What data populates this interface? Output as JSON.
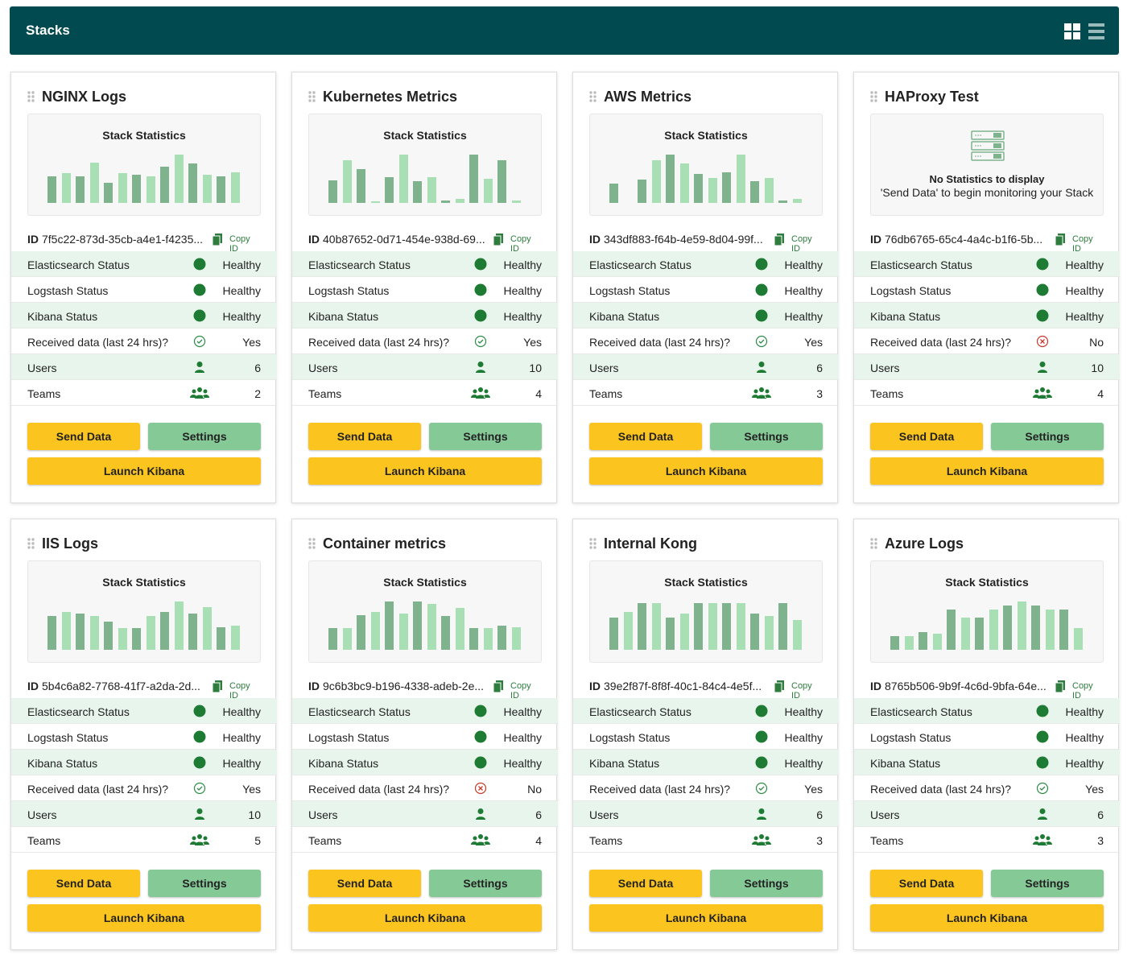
{
  "header": {
    "title": "Stacks"
  },
  "row_labels": [
    "Elasticsearch Status",
    "Logstash Status",
    "Kibana Status",
    "Received data (last 24 hrs)?",
    "Users",
    "Teams"
  ],
  "id_prefix": "ID",
  "copy_label": "Copy ID",
  "stats_title": "Stack Statistics",
  "buttons": {
    "send": "Send Data",
    "settings": "Settings",
    "launch": "Launch Kibana"
  },
  "stats_ylim": [
    0,
    100
  ],
  "bar_colors": [
    "#7fb38d",
    "#a8dfb5"
  ],
  "cards": [
    {
      "title": "NGINX Logs",
      "id": "7f5c22-873d-35cb-a4e1-f4235...",
      "statuses": [
        "Healthy",
        "Healthy",
        "Healthy"
      ],
      "received": "Yes",
      "received_ok": true,
      "users": 6,
      "teams": 2,
      "stats": [
        55,
        62,
        55,
        83,
        42,
        62,
        58,
        55,
        75,
        100,
        82,
        58,
        55,
        63
      ]
    },
    {
      "title": "Kubernetes Metrics",
      "id": "40b87652-0d71-454e-938d-69...",
      "statuses": [
        "Healthy",
        "Healthy",
        "Healthy"
      ],
      "received": "Yes",
      "received_ok": true,
      "users": 10,
      "teams": 4,
      "stats": [
        47,
        88,
        70,
        3,
        53,
        100,
        45,
        53,
        5,
        8,
        100,
        50,
        88,
        5
      ]
    },
    {
      "title": "AWS Metrics",
      "id": "343df883-f64b-4e59-8d04-99f...",
      "statuses": [
        "Healthy",
        "Healthy",
        "Healthy"
      ],
      "received": "Yes",
      "received_ok": true,
      "users": 6,
      "teams": 3,
      "stats": [
        40,
        0,
        48,
        88,
        100,
        82,
        60,
        52,
        63,
        100,
        45,
        52,
        5,
        8
      ]
    },
    {
      "title": "HAProxy Test",
      "id": "76db6765-65c4-4a4c-b1f6-5b...",
      "statuses": [
        "Healthy",
        "Healthy",
        "Healthy"
      ],
      "received": "No",
      "received_ok": false,
      "users": 10,
      "teams": 4,
      "no_stats": [
        "No Statistics to display",
        "'Send Data' to begin monitoring your Stack"
      ]
    },
    {
      "title": "IIS Logs",
      "id": "5b4c6a82-7768-41f7-a2da-2d...",
      "statuses": [
        "Healthy",
        "Healthy",
        "Healthy"
      ],
      "received": "Yes",
      "received_ok": true,
      "users": 10,
      "teams": 5,
      "stats": [
        70,
        78,
        75,
        70,
        58,
        45,
        45,
        70,
        78,
        100,
        75,
        88,
        47,
        50
      ]
    },
    {
      "title": "Container metrics",
      "id": "9c6b3bc9-b196-4338-adeb-2e...",
      "statuses": [
        "Healthy",
        "Healthy",
        "Healthy"
      ],
      "received": "No",
      "received_ok": false,
      "users": 6,
      "teams": 4,
      "stats": [
        45,
        45,
        72,
        78,
        100,
        75,
        100,
        95,
        70,
        87,
        45,
        45,
        50,
        47
      ]
    },
    {
      "title": "Internal Kong",
      "id": "39e2f87f-8f8f-40c1-84c4-4e5f...",
      "statuses": [
        "Healthy",
        "Healthy",
        "Healthy"
      ],
      "received": "Yes",
      "received_ok": true,
      "users": 6,
      "teams": 3,
      "stats": [
        67,
        78,
        97,
        97,
        67,
        75,
        97,
        97,
        97,
        97,
        75,
        70,
        97,
        62
      ]
    },
    {
      "title": "Azure Logs",
      "id": "8765b506-9b9f-4c6d-9bfa-64e...",
      "statuses": [
        "Healthy",
        "Healthy",
        "Healthy"
      ],
      "received": "Yes",
      "received_ok": true,
      "users": 6,
      "teams": 3,
      "stats": [
        28,
        28,
        37,
        33,
        83,
        67,
        67,
        83,
        92,
        100,
        92,
        83,
        83,
        45
      ]
    }
  ]
}
